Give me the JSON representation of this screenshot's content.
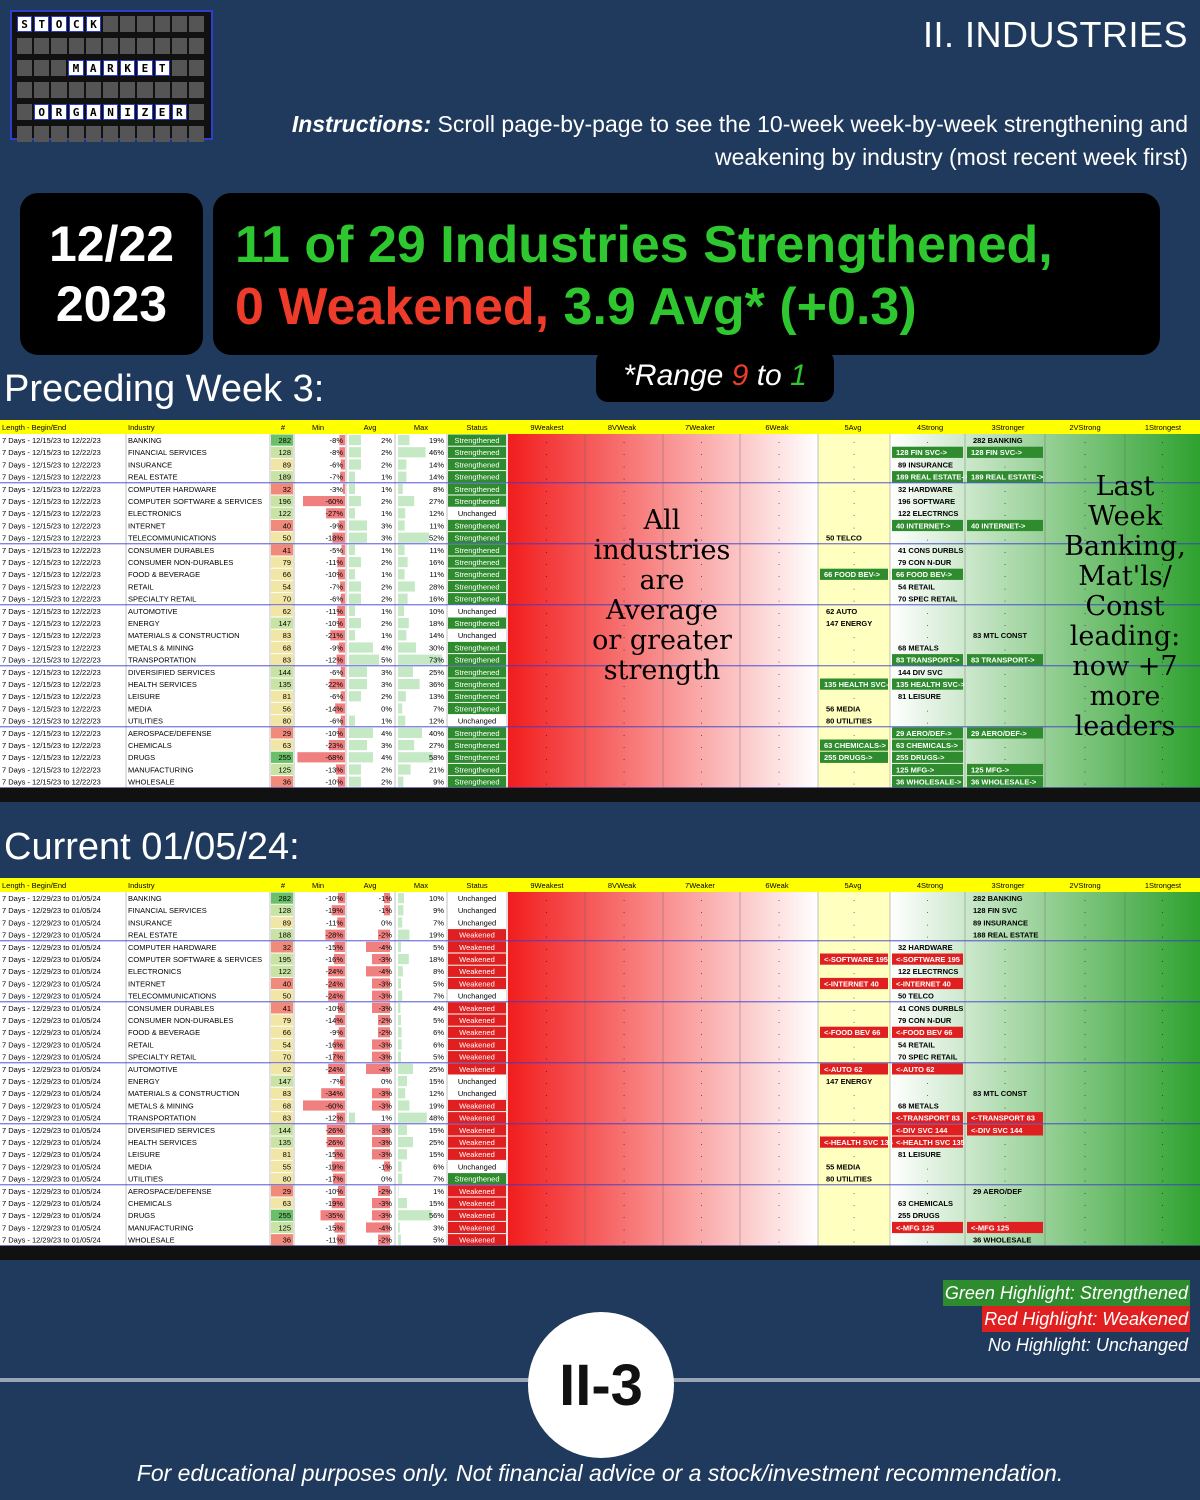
{
  "logo": {
    "words": [
      "STOCK",
      "MARKET",
      "ORGANIZER"
    ]
  },
  "section_tag": "II. INDUSTRIES",
  "instructions": {
    "label": "Instructions:",
    "text": "Scroll page-by-page to see the 10-week week-by-week strengthening and weakening by industry (most recent week first)"
  },
  "date": {
    "md": "12/22",
    "year": "2023"
  },
  "headline": {
    "line1": "11 of 29 Industries Strengthened,",
    "weakened": "0 Weakened,",
    "avg": "3.9 Avg* (+0.3)"
  },
  "range": {
    "prefix": "*Range",
    "hi": "9",
    "mid": "to",
    "lo": "1"
  },
  "sections": {
    "prev": "Preceding Week 3:",
    "curr": "Current 01/05/24:"
  },
  "columns": [
    "Length - Begin/End",
    "Industry",
    "#",
    "Min",
    "Avg",
    "Max",
    "Status",
    "9Weakest",
    "8VWeak",
    "7Weaker",
    "6Weak",
    "5Avg",
    "4Strong",
    "3Stronger",
    "2VStrong",
    "1Strongest"
  ],
  "notes": {
    "middle": "All industries are Average or greater strength",
    "right": "Last Week Banking, Mat'ls/ Const leading: now +7 more leaders"
  },
  "colors": {
    "strengthened": "#2e8b2e",
    "weakened": "#e02020",
    "header_yellow": "#ffff00",
    "bg": "#1f3a5c"
  },
  "tables": [
    {
      "period": "7 Days - 12/15/23 to 12/22/23",
      "rows": [
        [
          "BANKING",
          "282",
          "-8%",
          "2%",
          "19%",
          "Strengthened",
          3,
          "282 BANKING",
          0
        ],
        [
          "FINANCIAL SERVICES",
          "128",
          "-8%",
          "2%",
          "46%",
          "Strengthened",
          4,
          "128 FIN SVC->",
          1
        ],
        [
          "INSURANCE",
          "89",
          "-6%",
          "2%",
          "14%",
          "Strengthened",
          4,
          "89 INSURANCE",
          0
        ],
        [
          "REAL ESTATE",
          "189",
          "-7%",
          "1%",
          "14%",
          "Strengthened",
          4,
          "189 REAL ESTATE->",
          1
        ],
        [
          "COMPUTER HARDWARE",
          "32",
          "-3%",
          "1%",
          "8%",
          "Strengthened",
          4,
          "32 HARDWARE",
          0
        ],
        [
          "COMPUTER SOFTWARE & SERVICES",
          "196",
          "-60%",
          "2%",
          "27%",
          "Strengthened",
          4,
          "196 SOFTWARE",
          0
        ],
        [
          "ELECTRONICS",
          "122",
          "-27%",
          "1%",
          "12%",
          "Unchanged",
          4,
          "122 ELECTRNCS",
          0
        ],
        [
          "INTERNET",
          "40",
          "-9%",
          "3%",
          "11%",
          "Strengthened",
          4,
          "40 INTERNET->",
          1
        ],
        [
          "TELECOMMUNICATIONS",
          "50",
          "-18%",
          "3%",
          "52%",
          "Strengthened",
          5,
          "50 TELCO",
          0
        ],
        [
          "CONSUMER DURABLES",
          "41",
          "-5%",
          "1%",
          "11%",
          "Strengthened",
          4,
          "41 CONS DURBLS",
          0
        ],
        [
          "CONSUMER NON-DURABLES",
          "79",
          "-11%",
          "2%",
          "16%",
          "Strengthened",
          4,
          "79 CON N-DUR",
          0
        ],
        [
          "FOOD & BEVERAGE",
          "66",
          "-10%",
          "1%",
          "11%",
          "Strengthened",
          5,
          "66 FOOD BEV->",
          1
        ],
        [
          "RETAIL",
          "54",
          "-7%",
          "2%",
          "28%",
          "Strengthened",
          4,
          "54 RETAIL",
          0
        ],
        [
          "SPECIALTY RETAIL",
          "70",
          "-6%",
          "2%",
          "16%",
          "Strengthened",
          4,
          "70 SPEC RETAIL",
          0
        ],
        [
          "AUTOMOTIVE",
          "62",
          "-11%",
          "1%",
          "10%",
          "Unchanged",
          5,
          "62 AUTO",
          0
        ],
        [
          "ENERGY",
          "147",
          "-10%",
          "2%",
          "18%",
          "Strengthened",
          5,
          "147 ENERGY",
          0
        ],
        [
          "MATERIALS & CONSTRUCTION",
          "83",
          "-21%",
          "1%",
          "14%",
          "Unchanged",
          3,
          "83 MTL CONST",
          0
        ],
        [
          "METALS & MINING",
          "68",
          "-9%",
          "4%",
          "30%",
          "Strengthened",
          4,
          "68 METALS",
          0
        ],
        [
          "TRANSPORTATION",
          "83",
          "-12%",
          "5%",
          "73%",
          "Strengthened",
          4,
          "83 TRANSPORT->",
          1
        ],
        [
          "DIVERSIFIED SERVICES",
          "144",
          "-6%",
          "3%",
          "25%",
          "Strengthened",
          4,
          "144 DIV SVC",
          0
        ],
        [
          "HEALTH SERVICES",
          "135",
          "-22%",
          "3%",
          "36%",
          "Strengthened",
          5,
          "135 HEALTH SVC->",
          1
        ],
        [
          "LEISURE",
          "81",
          "-6%",
          "2%",
          "13%",
          "Strengthened",
          4,
          "81 LEISURE",
          0
        ],
        [
          "MEDIA",
          "56",
          "-14%",
          "0%",
          "7%",
          "Strengthened",
          5,
          "56 MEDIA",
          0
        ],
        [
          "UTILITIES",
          "80",
          "-6%",
          "1%",
          "12%",
          "Unchanged",
          5,
          "80 UTILITIES",
          0
        ],
        [
          "AEROSPACE/DEFENSE",
          "29",
          "-10%",
          "4%",
          "40%",
          "Strengthened",
          4,
          "29 AERO/DEF->",
          1
        ],
        [
          "CHEMICALS",
          "63",
          "-23%",
          "3%",
          "27%",
          "Strengthened",
          5,
          "63 CHEMICALS->",
          1
        ],
        [
          "DRUGS",
          "255",
          "-68%",
          "4%",
          "58%",
          "Strengthened",
          5,
          "255 DRUGS->",
          1
        ],
        [
          "MANUFACTURING",
          "125",
          "-13%",
          "2%",
          "21%",
          "Strengthened",
          4,
          "125 MFG->",
          1
        ],
        [
          "WHOLESALE",
          "36",
          "-10%",
          "2%",
          "9%",
          "Strengthened",
          4,
          "36 WHOLESALE->",
          1
        ]
      ]
    },
    {
      "period": "7 Days - 12/29/23 to 01/05/24",
      "rows": [
        [
          "BANKING",
          "282",
          "-10%",
          "-1%",
          "10%",
          "Unchanged",
          3,
          "282 BANKING",
          0
        ],
        [
          "FINANCIAL SERVICES",
          "128",
          "-19%",
          "-1%",
          "9%",
          "Unchanged",
          3,
          "128 FIN SVC",
          0
        ],
        [
          "INSURANCE",
          "89",
          "-11%",
          "0%",
          "7%",
          "Unchanged",
          3,
          "89 INSURANCE",
          0
        ],
        [
          "REAL ESTATE",
          "188",
          "-28%",
          "-2%",
          "19%",
          "Weakened",
          3,
          "188 REAL ESTATE",
          0
        ],
        [
          "COMPUTER HARDWARE",
          "32",
          "-15%",
          "-4%",
          "5%",
          "Weakened",
          4,
          "32 HARDWARE",
          0
        ],
        [
          "COMPUTER SOFTWARE & SERVICES",
          "195",
          "-16%",
          "-3%",
          "18%",
          "Weakened",
          4,
          "<-SOFTWARE 195",
          -1
        ],
        [
          "ELECTRONICS",
          "122",
          "-24%",
          "-4%",
          "8%",
          "Weakened",
          4,
          "122 ELECTRNCS",
          0
        ],
        [
          "INTERNET",
          "40",
          "-24%",
          "-3%",
          "5%",
          "Weakened",
          4,
          "<-INTERNET 40",
          -1
        ],
        [
          "TELECOMMUNICATIONS",
          "50",
          "-24%",
          "-3%",
          "7%",
          "Unchanged",
          4,
          "50 TELCO",
          0
        ],
        [
          "CONSUMER DURABLES",
          "41",
          "-10%",
          "-3%",
          "4%",
          "Weakened",
          4,
          "41 CONS DURBLS",
          0
        ],
        [
          "CONSUMER NON-DURABLES",
          "79",
          "-14%",
          "-2%",
          "5%",
          "Weakened",
          4,
          "79 CON N-DUR",
          0
        ],
        [
          "FOOD & BEVERAGE",
          "66",
          "-9%",
          "-2%",
          "6%",
          "Weakened",
          4,
          "<-FOOD BEV 66",
          -1
        ],
        [
          "RETAIL",
          "54",
          "-16%",
          "-3%",
          "6%",
          "Weakened",
          4,
          "54 RETAIL",
          0
        ],
        [
          "SPECIALTY RETAIL",
          "70",
          "-17%",
          "-3%",
          "5%",
          "Weakened",
          4,
          "70 SPEC RETAIL",
          0
        ],
        [
          "AUTOMOTIVE",
          "62",
          "-24%",
          "-4%",
          "25%",
          "Weakened",
          4,
          "<-AUTO 62",
          -1
        ],
        [
          "ENERGY",
          "147",
          "-7%",
          "0%",
          "15%",
          "Unchanged",
          5,
          "147 ENERGY",
          0
        ],
        [
          "MATERIALS & CONSTRUCTION",
          "83",
          "-34%",
          "-3%",
          "12%",
          "Unchanged",
          3,
          "83 MTL CONST",
          0
        ],
        [
          "METALS & MINING",
          "68",
          "-60%",
          "-3%",
          "19%",
          "Weakened",
          4,
          "68 METALS",
          0
        ],
        [
          "TRANSPORTATION",
          "83",
          "-12%",
          "1%",
          "48%",
          "Weakened",
          3,
          "<-TRANSPORT 83",
          -1
        ],
        [
          "DIVERSIFIED SERVICES",
          "144",
          "-26%",
          "-3%",
          "15%",
          "Weakened",
          3,
          "<-DIV SVC 144",
          -1
        ],
        [
          "HEALTH SERVICES",
          "135",
          "-26%",
          "-3%",
          "25%",
          "Weakened",
          4,
          "<-HEALTH SVC 135",
          -1
        ],
        [
          "LEISURE",
          "81",
          "-15%",
          "-3%",
          "15%",
          "Weakened",
          4,
          "81 LEISURE",
          0
        ],
        [
          "MEDIA",
          "55",
          "-19%",
          "-1%",
          "6%",
          "Unchanged",
          5,
          "55 MEDIA",
          0
        ],
        [
          "UTILITIES",
          "80",
          "-17%",
          "0%",
          "7%",
          "Strengthened",
          5,
          "80 UTILITIES",
          0
        ],
        [
          "AEROSPACE/DEFENSE",
          "29",
          "-10%",
          "-2%",
          "1%",
          "Weakened",
          3,
          "29 AERO/DEF",
          0
        ],
        [
          "CHEMICALS",
          "63",
          "-19%",
          "-3%",
          "15%",
          "Weakened",
          4,
          "63 CHEMICALS",
          0
        ],
        [
          "DRUGS",
          "255",
          "-35%",
          "-3%",
          "56%",
          "Weakened",
          4,
          "255 DRUGS",
          0
        ],
        [
          "MANUFACTURING",
          "125",
          "-15%",
          "-4%",
          "3%",
          "Weakened",
          3,
          "<-MFG 125",
          -1
        ],
        [
          "WHOLESALE",
          "36",
          "-11%",
          "-2%",
          "5%",
          "Weakened",
          3,
          "36 WHOLESALE",
          0
        ]
      ]
    }
  ],
  "legend": {
    "green": "Green Highlight: Strengthened",
    "red": "Red Highlight: Weakened",
    "none": "No Highlight: Unchanged"
  },
  "page": "II-3",
  "disclaimer": "For educational purposes only. Not financial advice or a stock/investment recommendation."
}
